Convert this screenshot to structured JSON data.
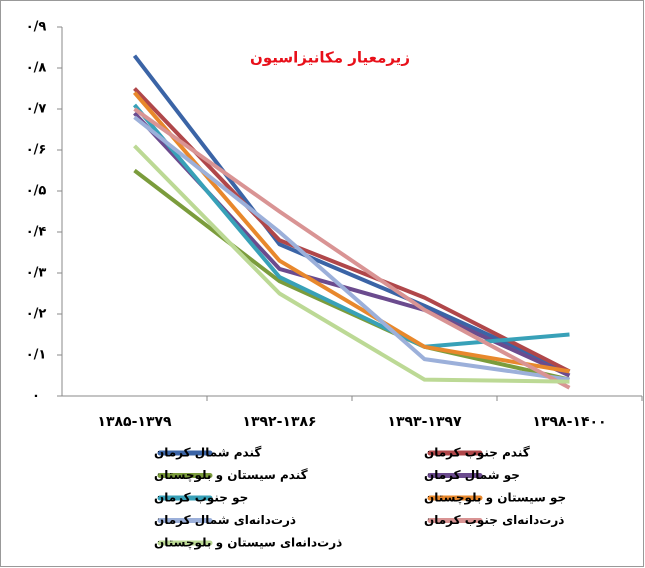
{
  "chart_data": {
    "type": "line",
    "title": "زیرمعیار مکانیزاسیون",
    "title_color": "#e8101a",
    "categories": [
      "۱۳۸۵-۱۳۷۹",
      "۱۳۹۲-۱۳۸۶",
      "۱۳۹۳-۱۳۹۷",
      "۱۳۹۸-۱۴۰۰"
    ],
    "ylim": [
      0,
      0.9
    ],
    "yticks": [
      {
        "value": 0,
        "label": "۰"
      },
      {
        "value": 0.1,
        "label": "۰/۱"
      },
      {
        "value": 0.2,
        "label": "۰/۲"
      },
      {
        "value": 0.3,
        "label": "۰/۳"
      },
      {
        "value": 0.4,
        "label": "۰/۴"
      },
      {
        "value": 0.5,
        "label": "۰/۵"
      },
      {
        "value": 0.6,
        "label": "۰/۶"
      },
      {
        "value": 0.7,
        "label": "۰/۷"
      },
      {
        "value": 0.8,
        "label": "۰/۸"
      },
      {
        "value": 0.9,
        "label": "۰/۹"
      }
    ],
    "grid": false,
    "series": [
      {
        "name": "گندم شمال کرمان",
        "color": "#3b64a6",
        "values": [
          0.83,
          0.37,
          0.22,
          0.06
        ]
      },
      {
        "name": "گندم جنوب کرمان",
        "color": "#b0474a",
        "values": [
          0.75,
          0.38,
          0.24,
          0.06
        ]
      },
      {
        "name": "گندم سیستان و بلوچستان",
        "color": "#7b9c3c",
        "values": [
          0.55,
          0.28,
          0.12,
          0.04
        ]
      },
      {
        "name": "جو شمال کرمان",
        "color": "#6b4b8e",
        "values": [
          0.69,
          0.31,
          0.21,
          0.05
        ]
      },
      {
        "name": "جو جنوب کرمان",
        "color": "#38a1b8",
        "values": [
          0.71,
          0.29,
          0.12,
          0.15
        ]
      },
      {
        "name": "جو سیستان و بلوچستان",
        "color": "#e8882c",
        "values": [
          0.74,
          0.33,
          0.12,
          0.06
        ]
      },
      {
        "name": "ذرت‌دانه‌ای شمال کرمان",
        "color": "#9cb0da",
        "values": [
          0.68,
          0.4,
          0.09,
          0.04
        ]
      },
      {
        "name": "ذرت‌دانه‌ای جنوب کرمان",
        "color": "#d99494",
        "values": [
          0.7,
          0.45,
          0.21,
          0.02
        ]
      },
      {
        "name": "ذرت‌دانه‌ای سیستان و بلوچستان",
        "color": "#bcd995",
        "values": [
          0.61,
          0.25,
          0.04,
          0.035
        ]
      }
    ]
  }
}
